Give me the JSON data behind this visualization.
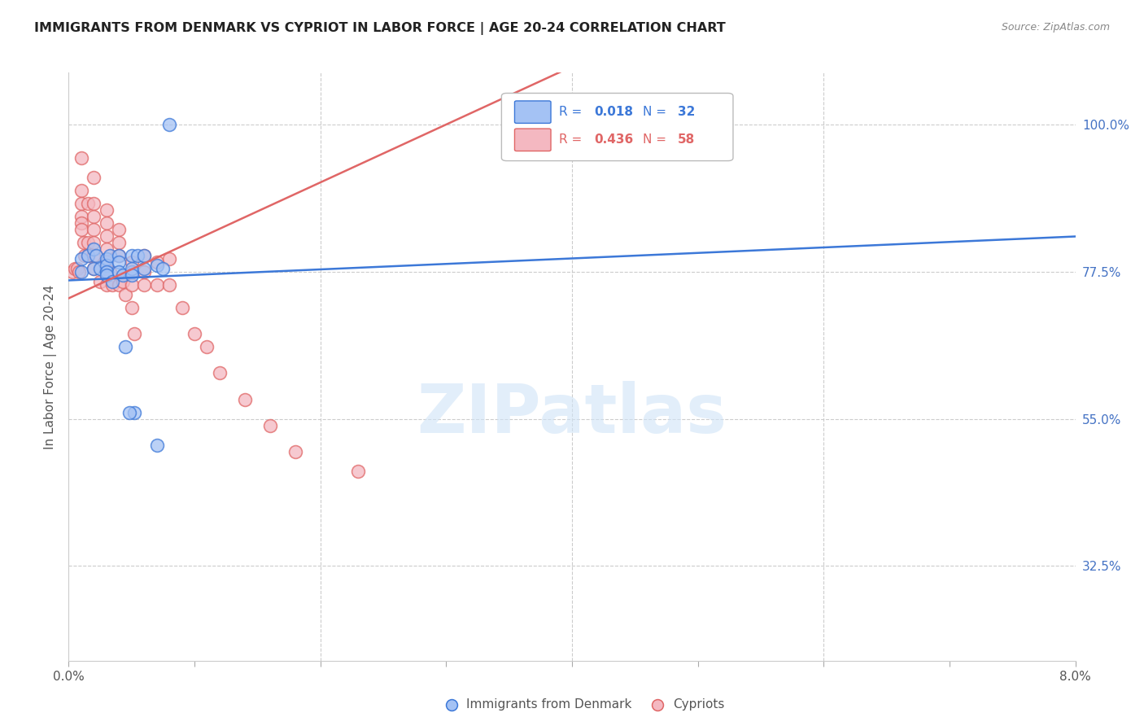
{
  "title": "IMMIGRANTS FROM DENMARK VS CYPRIOT IN LABOR FORCE | AGE 20-24 CORRELATION CHART",
  "source": "Source: ZipAtlas.com",
  "ylabel": "In Labor Force | Age 20-24",
  "xmin": 0.0,
  "xmax": 0.08,
  "ymin": 0.18,
  "ymax": 1.08,
  "color_denmark": "#a4c2f4",
  "color_cypriot": "#f4b8c1",
  "color_denmark_line": "#3c78d8",
  "color_cypriot_line": "#e06666",
  "grid_color": "#cccccc",
  "right_tick_color": "#4472c4",
  "watermark_color": "#d0e4f7",
  "denmark_x": [
    0.001,
    0.001,
    0.0015,
    0.002,
    0.002,
    0.0022,
    0.0025,
    0.003,
    0.003,
    0.003,
    0.003,
    0.003,
    0.0033,
    0.0035,
    0.004,
    0.004,
    0.004,
    0.0043,
    0.005,
    0.005,
    0.005,
    0.005,
    0.0055,
    0.006,
    0.006,
    0.007,
    0.0075,
    0.008,
    0.0045,
    0.0052,
    0.0048,
    0.007
  ],
  "denmark_y": [
    0.795,
    0.775,
    0.8,
    0.81,
    0.78,
    0.8,
    0.78,
    0.795,
    0.775,
    0.785,
    0.775,
    0.77,
    0.8,
    0.76,
    0.8,
    0.79,
    0.775,
    0.77,
    0.8,
    0.775,
    0.78,
    0.77,
    0.8,
    0.8,
    0.78,
    0.785,
    0.78,
    1.0,
    0.66,
    0.56,
    0.56,
    0.51
  ],
  "cypriot_x": [
    0.0003,
    0.0005,
    0.0007,
    0.0008,
    0.001,
    0.001,
    0.001,
    0.001,
    0.001,
    0.001,
    0.0012,
    0.0013,
    0.0015,
    0.0015,
    0.0015,
    0.002,
    0.002,
    0.002,
    0.002,
    0.002,
    0.002,
    0.002,
    0.0025,
    0.003,
    0.003,
    0.003,
    0.003,
    0.003,
    0.003,
    0.003,
    0.0033,
    0.0035,
    0.004,
    0.004,
    0.004,
    0.004,
    0.0043,
    0.0045,
    0.005,
    0.005,
    0.005,
    0.005,
    0.0052,
    0.006,
    0.006,
    0.006,
    0.007,
    0.007,
    0.008,
    0.008,
    0.009,
    0.01,
    0.011,
    0.012,
    0.014,
    0.016,
    0.018,
    0.023
  ],
  "cypriot_y": [
    0.775,
    0.78,
    0.78,
    0.775,
    0.95,
    0.9,
    0.88,
    0.86,
    0.85,
    0.84,
    0.82,
    0.8,
    0.88,
    0.82,
    0.8,
    0.92,
    0.88,
    0.86,
    0.84,
    0.82,
    0.8,
    0.78,
    0.76,
    0.87,
    0.85,
    0.83,
    0.81,
    0.79,
    0.77,
    0.755,
    0.775,
    0.755,
    0.84,
    0.82,
    0.8,
    0.755,
    0.76,
    0.74,
    0.79,
    0.775,
    0.755,
    0.72,
    0.68,
    0.8,
    0.775,
    0.755,
    0.79,
    0.755,
    0.795,
    0.755,
    0.72,
    0.68,
    0.66,
    0.62,
    0.58,
    0.54,
    0.5,
    0.47
  ]
}
